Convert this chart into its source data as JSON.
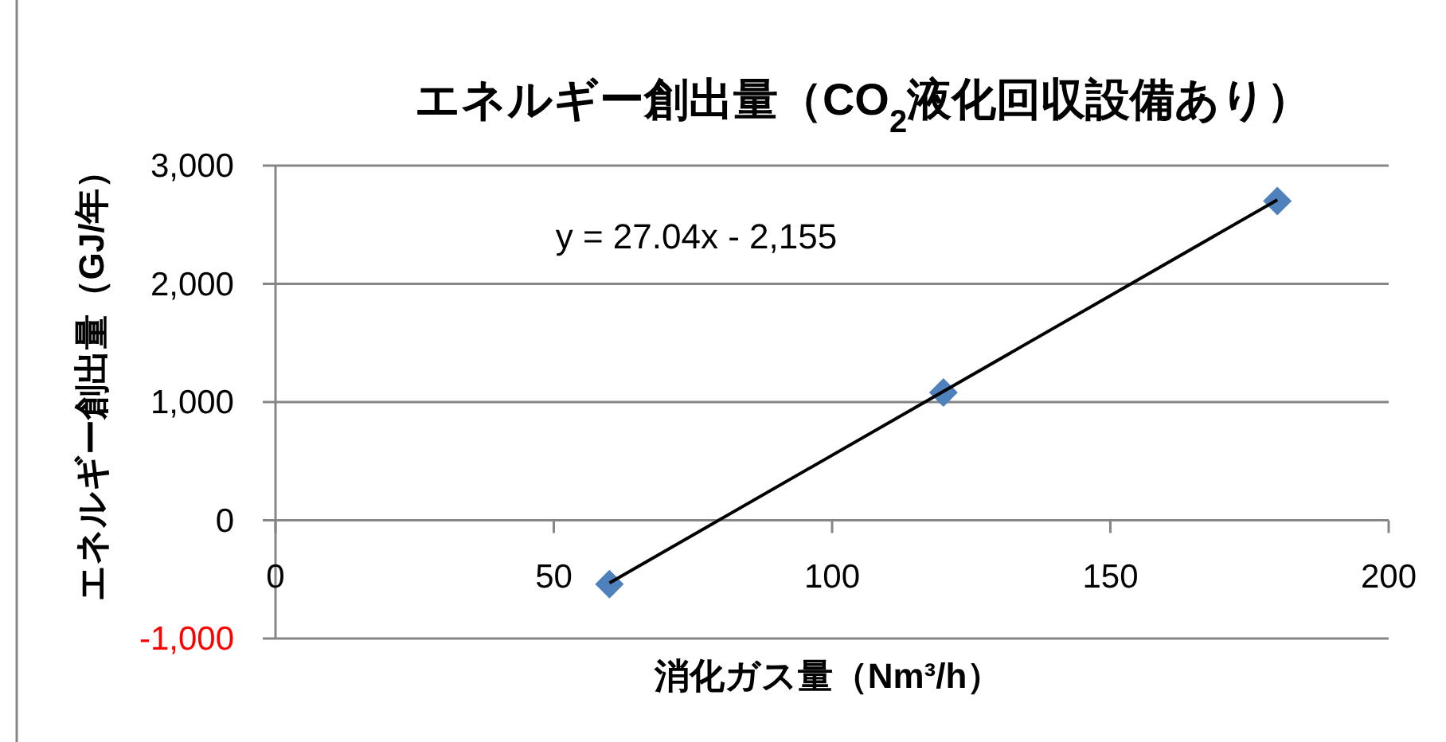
{
  "chart_data": {
    "type": "scatter",
    "title": "エネルギー創出量（CO$_{2}$液化回収設備あり）",
    "xlabel": "消化ガス量（Nm³/h）",
    "ylabel": "エネルギー創出量（GJ/年）",
    "xlim": [
      0,
      200
    ],
    "ylim": [
      -1000,
      3000
    ],
    "xticks": [
      0,
      50,
      100,
      150,
      200
    ],
    "yticks": [
      {
        "value": -1000,
        "label": "-1,000"
      },
      {
        "value": 0,
        "label": "0"
      },
      {
        "value": 1000,
        "label": "1,000"
      },
      {
        "value": 2000,
        "label": "2,000"
      },
      {
        "value": 3000,
        "label": "3,000"
      }
    ],
    "grid": "y",
    "marker": "diamond",
    "series": [
      {
        "color": "#4f81bd",
        "x": [
          60,
          120,
          180
        ],
        "values": [
          -540,
          1080,
          2700
        ]
      },
      {
        "type": "line",
        "color": "#000000",
        "marker": "none",
        "x": [
          60,
          180
        ],
        "values": [
          -530,
          2710
        ]
      }
    ],
    "annotations": [
      "y = 27.04x - 2,155"
    ]
  }
}
